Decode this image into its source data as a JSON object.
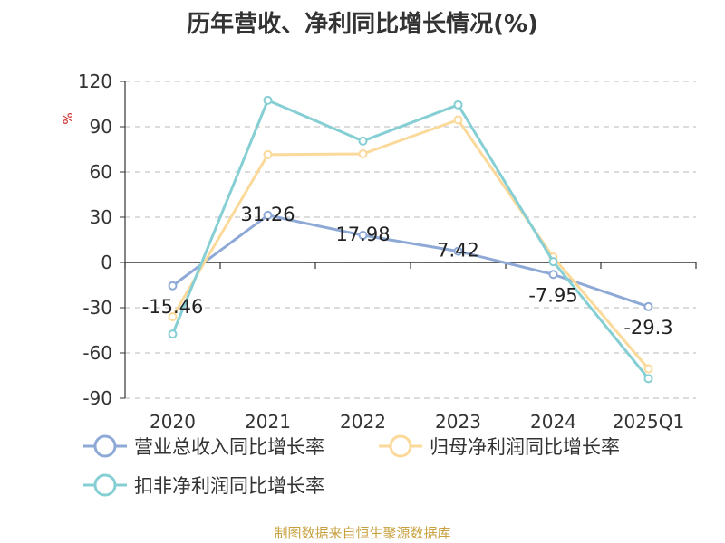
{
  "title": "历年营收、净利同比增长情况(%)",
  "source": "制图数据来自恒生聚源数据库",
  "colors": {
    "grid": "#c8c8c8",
    "axis": "#333333",
    "unit": "#cc2222"
  },
  "chart_data": {
    "type": "line",
    "categories": [
      "2020",
      "2021",
      "2022",
      "2023",
      "2024",
      "2025Q1"
    ],
    "ylim": [
      -90,
      120
    ],
    "yticks": [
      120,
      90,
      60,
      30,
      0,
      -30,
      -60,
      -90
    ],
    "ylabel": "%",
    "grid": true,
    "legend_position": "bottom-left",
    "series": [
      {
        "name": "营业总收入同比增长率",
        "color": "#8ea9d6",
        "values": [
          -15.46,
          31.26,
          17.98,
          7.42,
          -7.95,
          -29.3
        ],
        "labels": [
          "-15.46",
          "31.26",
          "17.98",
          "7.42",
          "-7.95",
          "-29.3"
        ]
      },
      {
        "name": "归母净利润同比增长率",
        "color": "#fbd99a",
        "values": [
          -36.0,
          71.5,
          72.0,
          94.5,
          3.5,
          -70.5
        ]
      },
      {
        "name": "扣非净利润同比增长率",
        "color": "#85cfd4",
        "values": [
          -47.5,
          107.5,
          80.5,
          104.5,
          0.5,
          -77.0
        ]
      }
    ]
  }
}
